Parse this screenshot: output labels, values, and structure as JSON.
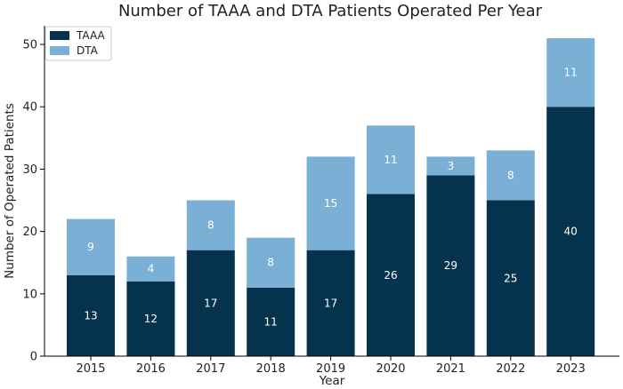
{
  "chart_data": {
    "type": "bar",
    "stacked": true,
    "title": "Number of TAAA and DTA Patients Operated Per Year",
    "xlabel": "Year",
    "ylabel": "Number of Operated Patients",
    "categories": [
      "2015",
      "2016",
      "2017",
      "2018",
      "2019",
      "2020",
      "2021",
      "2022",
      "2023"
    ],
    "series": [
      {
        "name": "TAAA",
        "color": "#05324d",
        "values": [
          13,
          12,
          17,
          11,
          17,
          26,
          29,
          25,
          40
        ]
      },
      {
        "name": "DTA",
        "color": "#7aafd6",
        "values": [
          9,
          4,
          8,
          8,
          15,
          11,
          3,
          8,
          11
        ]
      }
    ],
    "ylim": [
      0,
      53
    ],
    "yticks": [
      0,
      10,
      20,
      30,
      40,
      50
    ],
    "grid": false,
    "legend_position": "top-left"
  }
}
